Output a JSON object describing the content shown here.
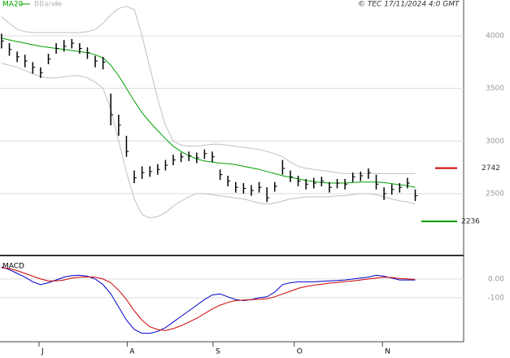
{
  "chart_data": [
    {
      "type": "ohlc",
      "source": "© TEC 17/11/2024 4:0 GMT",
      "color": "#000000",
      "xlim": [
        -0.2,
        59.2
      ],
      "ylim": [
        1920,
        4340
      ],
      "yticks": [
        2500,
        3000,
        3500,
        4000
      ],
      "grid": true,
      "high": [
        4020,
        3930,
        3850,
        3820,
        3750,
        3700,
        3830,
        3930,
        3960,
        3970,
        3930,
        3890,
        3810,
        3800,
        3450,
        3250,
        3050,
        2720,
        2760,
        2760,
        2780,
        2820,
        2870,
        2890,
        2900,
        2890,
        2920,
        2900,
        2730,
        2670,
        2610,
        2600,
        2580,
        2610,
        2560,
        2610,
        2820,
        2720,
        2670,
        2640,
        2650,
        2660,
        2610,
        2640,
        2640,
        2700,
        2710,
        2740,
        2680,
        2560,
        2590,
        2600,
        2650,
        2540
      ],
      "low": [
        3880,
        3810,
        3750,
        3700,
        3640,
        3600,
        3730,
        3830,
        3850,
        3880,
        3830,
        3780,
        3700,
        3680,
        3150,
        3050,
        2850,
        2600,
        2640,
        2660,
        2680,
        2720,
        2770,
        2800,
        2810,
        2790,
        2830,
        2800,
        2630,
        2570,
        2510,
        2500,
        2480,
        2510,
        2420,
        2520,
        2680,
        2610,
        2570,
        2540,
        2550,
        2570,
        2510,
        2550,
        2540,
        2610,
        2620,
        2640,
        2540,
        2440,
        2490,
        2510,
        2550,
        2430
      ],
      "close": [
        3950,
        3870,
        3800,
        3760,
        3700,
        3650,
        3780,
        3880,
        3900,
        3930,
        3880,
        3840,
        3760,
        3750,
        3250,
        3150,
        2900,
        2650,
        2700,
        2710,
        2730,
        2770,
        2820,
        2850,
        2860,
        2840,
        2880,
        2850,
        2680,
        2620,
        2560,
        2550,
        2530,
        2560,
        2460,
        2570,
        2740,
        2660,
        2620,
        2590,
        2600,
        2620,
        2560,
        2600,
        2590,
        2660,
        2670,
        2700,
        2590,
        2500,
        2540,
        2560,
        2600,
        2480
      ],
      "overlays": [
        {
          "name": "MA20",
          "color": "#00a000",
          "values": [
            3977,
            3960,
            3945,
            3930,
            3915,
            3900,
            3890,
            3880,
            3870,
            3860,
            3850,
            3840,
            3820,
            3790,
            3720,
            3620,
            3500,
            3380,
            3270,
            3180,
            3100,
            3020,
            2950,
            2900,
            2860,
            2830,
            2810,
            2800,
            2790,
            2785,
            2775,
            2760,
            2745,
            2730,
            2710,
            2690,
            2670,
            2655,
            2640,
            2625,
            2615,
            2605,
            2600,
            2600,
            2600,
            2605,
            2610,
            2610,
            2610,
            2605,
            2595,
            2585,
            2575,
            2560
          ]
        },
        {
          "name": "BBands",
          "color": "#c0c0c0",
          "upper": [
            4180,
            4120,
            4060,
            4040,
            4030,
            4030,
            4030,
            4030,
            4030,
            4030,
            4030,
            4040,
            4060,
            4120,
            4200,
            4260,
            4280,
            4250,
            4000,
            3700,
            3400,
            3150,
            3000,
            2960,
            2950,
            2950,
            2960,
            2970,
            2970,
            2960,
            2950,
            2940,
            2930,
            2920,
            2900,
            2880,
            2850,
            2800,
            2760,
            2740,
            2730,
            2720,
            2710,
            2700,
            2690,
            2690,
            2690,
            2690,
            2690,
            2690,
            2690,
            2690,
            2690,
            2690
          ],
          "lower": [
            3740,
            3720,
            3700,
            3670,
            3640,
            3610,
            3600,
            3600,
            3610,
            3620,
            3620,
            3600,
            3560,
            3500,
            3300,
            3000,
            2700,
            2450,
            2300,
            2270,
            2280,
            2320,
            2380,
            2430,
            2470,
            2500,
            2500,
            2490,
            2480,
            2470,
            2460,
            2450,
            2430,
            2410,
            2400,
            2410,
            2430,
            2450,
            2460,
            2470,
            2470,
            2470,
            2470,
            2480,
            2480,
            2490,
            2500,
            2500,
            2490,
            2470,
            2450,
            2430,
            2420,
            2400
          ]
        }
      ],
      "levels": [
        {
          "value": 2742,
          "color": "#cc0000"
        },
        {
          "value": 2236,
          "color": "#009900"
        }
      ]
    },
    {
      "type": "line",
      "title": "MACD",
      "xlim": [
        -0.2,
        59.2
      ],
      "ylim": [
        -335,
        117
      ],
      "yticks": [
        {
          "value": -100,
          "label": "-100"
        },
        {
          "value": 0,
          "label": "0.00"
        }
      ],
      "grid": true,
      "xticks": [
        {
          "value": 4.8,
          "label": "J"
        },
        {
          "value": 16.1,
          "label": "A"
        },
        {
          "value": 27.1,
          "label": "S"
        },
        {
          "value": 37.5,
          "label": "O"
        },
        {
          "value": 48.8,
          "label": "N"
        }
      ],
      "series": [
        {
          "color": "#0000cc",
          "values": [
            65,
            50,
            30,
            10,
            -15,
            -30,
            -20,
            -5,
            10,
            18,
            20,
            15,
            0,
            -30,
            -80,
            -150,
            -220,
            -270,
            -290,
            -290,
            -280,
            -260,
            -230,
            -200,
            -170,
            -140,
            -110,
            -85,
            -80,
            -95,
            -110,
            -115,
            -110,
            -100,
            -95,
            -70,
            -30,
            -20,
            -15,
            -15,
            -15,
            -12,
            -10,
            -8,
            -5,
            0,
            5,
            10,
            20,
            15,
            5,
            -5,
            -5,
            -5
          ]
        },
        {
          "color": "#cc0000",
          "values": [
            60,
            55,
            45,
            30,
            15,
            0,
            -10,
            -10,
            -5,
            5,
            10,
            12,
            10,
            0,
            -20,
            -60,
            -110,
            -170,
            -220,
            -255,
            -270,
            -275,
            -265,
            -250,
            -230,
            -210,
            -185,
            -160,
            -140,
            -125,
            -115,
            -112,
            -110,
            -108,
            -105,
            -95,
            -80,
            -65,
            -50,
            -40,
            -33,
            -28,
            -22,
            -18,
            -14,
            -10,
            -5,
            0,
            5,
            10,
            8,
            3,
            0,
            -2
          ]
        }
      ]
    }
  ]
}
